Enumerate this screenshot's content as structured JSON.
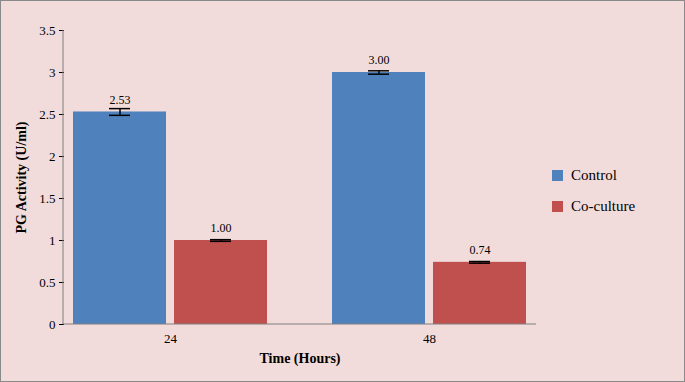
{
  "chart_data": {
    "type": "bar",
    "x_label": "Time (Hours)",
    "y_label": "PG Activity (U/ml)",
    "categories": [
      "24",
      "48"
    ],
    "series": [
      {
        "name": "Control",
        "color": "#4f81bd",
        "values": [
          2.53,
          3.0
        ],
        "value_labels": [
          "2.53",
          "3.00"
        ],
        "errors": [
          0.04,
          0.02
        ]
      },
      {
        "name": "Co-culture",
        "color": "#c0504d",
        "values": [
          1.0,
          0.74
        ],
        "value_labels": [
          "1.00",
          "0.74"
        ],
        "errors": [
          0.01,
          0.01
        ]
      }
    ],
    "ylim": [
      0,
      3.5
    ],
    "yticks": [
      0,
      0.5,
      1,
      1.5,
      2,
      2.5,
      3,
      3.5
    ],
    "grid": false,
    "legend": "right",
    "data_labels": true
  }
}
